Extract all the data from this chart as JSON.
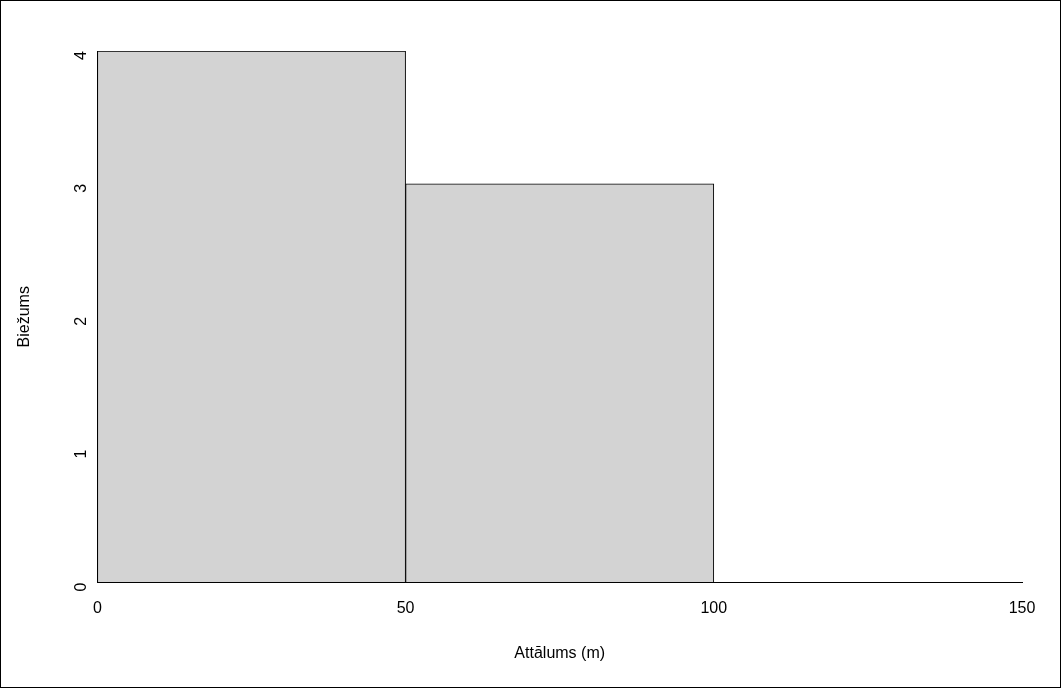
{
  "chart_data": {
    "type": "histogram",
    "xlabel": "Attālums (m)",
    "ylabel": "Biežums",
    "bins": [
      0,
      50,
      100,
      150
    ],
    "values": [
      4,
      3,
      0
    ],
    "color": "#d3d3d3",
    "xlim": [
      0,
      150
    ],
    "xticks": [
      0,
      50,
      100,
      150
    ],
    "ylim": [
      0,
      4
    ],
    "yticks": [
      0,
      1,
      2,
      3,
      4
    ],
    "grid": false,
    "legend": false
  }
}
